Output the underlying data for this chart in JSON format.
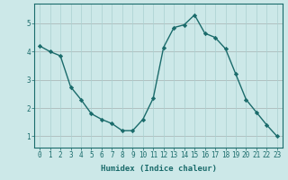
{
  "x": [
    0,
    1,
    2,
    3,
    4,
    5,
    6,
    7,
    8,
    9,
    10,
    11,
    12,
    13,
    14,
    15,
    16,
    17,
    18,
    19,
    20,
    21,
    22,
    23
  ],
  "y": [
    4.2,
    4.0,
    3.85,
    2.75,
    2.3,
    1.8,
    1.6,
    1.45,
    1.2,
    1.2,
    1.6,
    2.35,
    4.15,
    4.85,
    4.95,
    5.3,
    4.65,
    4.5,
    4.1,
    3.2,
    2.3,
    1.85,
    1.4,
    1.0
  ],
  "line_color": "#1a6b6b",
  "marker": "D",
  "marker_size": 2.2,
  "bg_color": "#cce8e8",
  "grid_color": "#aad0d0",
  "grid_color_major": "#c0a0a0",
  "xlabel": "Humidex (Indice chaleur)",
  "ylim": [
    0.6,
    5.7
  ],
  "xlim": [
    -0.5,
    23.5
  ],
  "yticks": [
    1,
    2,
    3,
    4,
    5
  ],
  "xticks": [
    0,
    1,
    2,
    3,
    4,
    5,
    6,
    7,
    8,
    9,
    10,
    11,
    12,
    13,
    14,
    15,
    16,
    17,
    18,
    19,
    20,
    21,
    22,
    23
  ],
  "tick_color": "#1a6b6b",
  "spine_color": "#1a6b6b",
  "label_fontsize": 5.5,
  "xlabel_fontsize": 6.5
}
